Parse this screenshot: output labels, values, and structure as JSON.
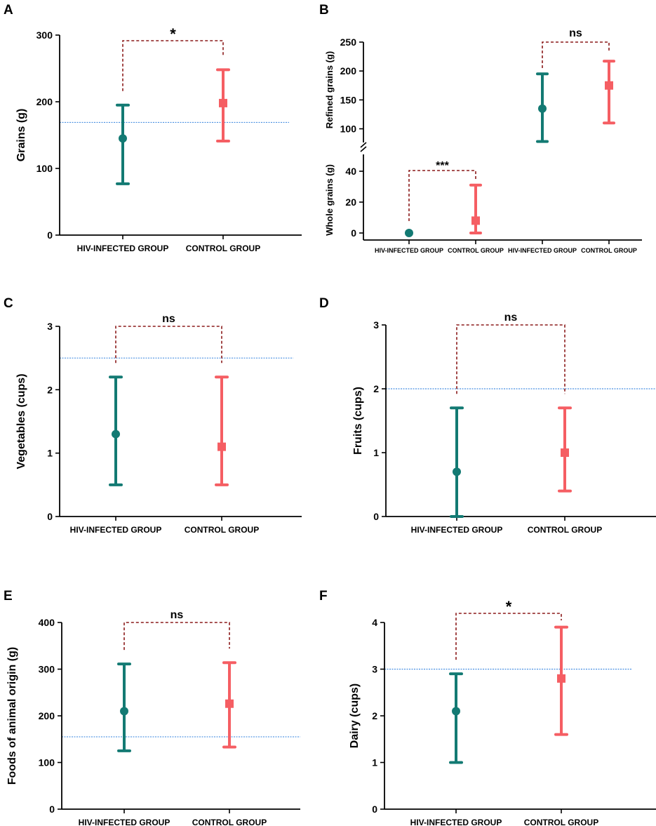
{
  "colors": {
    "hiv": "#137a73",
    "control": "#f55e63",
    "bracket": "#8b1a1a",
    "reference": "#4a90e2",
    "axis": "#000000"
  },
  "chart_data": [
    {
      "panel": "A",
      "type": "errorbar",
      "ylabel": "Grains (g)",
      "ylim": [
        0,
        300
      ],
      "yticks": [
        "0",
        "100",
        "200",
        "300"
      ],
      "reference_line": 169,
      "categories": [
        "HIV-INFECTED GROUP",
        "CONTROL GROUP"
      ],
      "series": [
        {
          "name": "HIV-INFECTED GROUP",
          "marker": "circle",
          "mean": 145,
          "lower": 77,
          "upper": 195
        },
        {
          "name": "CONTROL GROUP",
          "marker": "square",
          "mean": 198,
          "lower": 141,
          "upper": 248
        }
      ],
      "significance": "*"
    },
    {
      "panel": "B",
      "type": "errorbar",
      "split_axis": true,
      "upper_segment": {
        "ylabel": "Refined grains (g)",
        "ylim": [
          80,
          250
        ],
        "yticks": [
          "100",
          "150",
          "200",
          "250"
        ],
        "categories": [
          "HIV-INFECTED GROUP",
          "CONTROL GROUP"
        ],
        "series": [
          {
            "name": "HIV-INFECTED GROUP",
            "marker": "circle",
            "mean": 135,
            "lower": 78,
            "upper": 195
          },
          {
            "name": "CONTROL GROUP",
            "marker": "square",
            "mean": 175,
            "lower": 110,
            "upper": 217
          }
        ],
        "significance": "ns"
      },
      "lower_segment": {
        "ylabel": "Whole grains (g)",
        "ylim": [
          0,
          50
        ],
        "yticks": [
          "0",
          "20",
          "40"
        ],
        "categories": [
          "HIV-INFECTED GROUP",
          "CONTROL GROUP"
        ],
        "series": [
          {
            "name": "HIV-INFECTED GROUP",
            "marker": "circle",
            "mean": 0,
            "lower": 0,
            "upper": 0
          },
          {
            "name": "CONTROL GROUP",
            "marker": "square",
            "mean": 8,
            "lower": 0,
            "upper": 31
          }
        ],
        "significance": "***"
      }
    },
    {
      "panel": "C",
      "type": "errorbar",
      "ylabel": "Vegetables (cups)",
      "ylim": [
        0,
        3
      ],
      "yticks": [
        "0",
        "1",
        "2",
        "3"
      ],
      "reference_line": 2.5,
      "categories": [
        "HIV-INFECTED GROUP",
        "CONTROL GROUP"
      ],
      "series": [
        {
          "name": "HIV-INFECTED GROUP",
          "marker": "circle",
          "mean": 1.3,
          "lower": 0.5,
          "upper": 2.2
        },
        {
          "name": "CONTROL GROUP",
          "marker": "square",
          "mean": 1.1,
          "lower": 0.5,
          "upper": 2.2
        }
      ],
      "significance": "ns"
    },
    {
      "panel": "D",
      "type": "errorbar",
      "ylabel": "Fruits (cups)",
      "ylim": [
        0,
        3
      ],
      "yticks": [
        "0",
        "1",
        "2",
        "3"
      ],
      "reference_line": 2,
      "categories": [
        "HIV-INFECTED GROUP",
        "CONTROL GROUP"
      ],
      "series": [
        {
          "name": "HIV-INFECTED GROUP",
          "marker": "circle",
          "mean": 0.7,
          "lower": 0,
          "upper": 1.7
        },
        {
          "name": "CONTROL GROUP",
          "marker": "square",
          "mean": 1.0,
          "lower": 0.4,
          "upper": 1.7
        }
      ],
      "significance": "ns"
    },
    {
      "panel": "E",
      "type": "errorbar",
      "ylabel": "Foods of animal origin (g)",
      "ylim": [
        0,
        400
      ],
      "yticks": [
        "0",
        "100",
        "200",
        "300",
        "400"
      ],
      "reference_line": 155,
      "categories": [
        "HIV-INFECTED GROUP",
        "CONTROL GROUP"
      ],
      "series": [
        {
          "name": "HIV-INFECTED GROUP",
          "marker": "circle",
          "mean": 210,
          "lower": 125,
          "upper": 311
        },
        {
          "name": "CONTROL GROUP",
          "marker": "square",
          "mean": 226,
          "lower": 133,
          "upper": 314
        }
      ],
      "significance": "ns"
    },
    {
      "panel": "F",
      "type": "errorbar",
      "ylabel": "Dairy (cups)",
      "ylim": [
        0,
        4
      ],
      "yticks": [
        "0",
        "1",
        "2",
        "3",
        "4"
      ],
      "reference_line": 3,
      "categories": [
        "HIV-INFECTED GROUP",
        "CONTROL GROUP"
      ],
      "series": [
        {
          "name": "HIV-INFECTED GROUP",
          "marker": "circle",
          "mean": 2.1,
          "lower": 1.0,
          "upper": 2.9
        },
        {
          "name": "CONTROL GROUP",
          "marker": "square",
          "mean": 2.8,
          "lower": 1.6,
          "upper": 3.9
        }
      ],
      "significance": "*"
    }
  ]
}
